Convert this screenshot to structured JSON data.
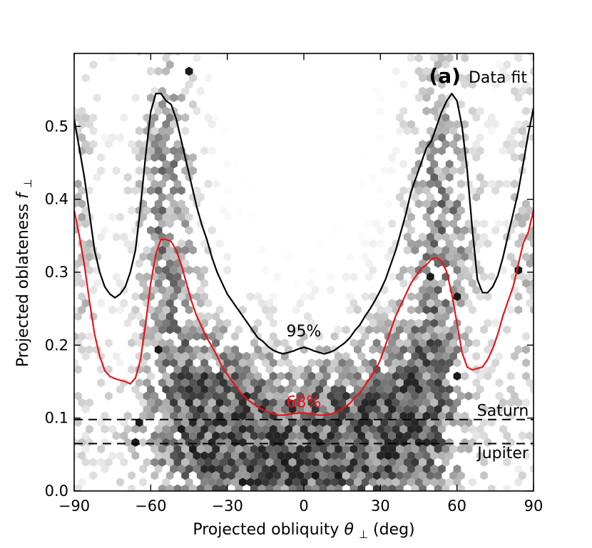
{
  "chart_data": {
    "type": "scatter",
    "panel_label": "(a)",
    "panel_title": "Data fit",
    "xlabel_prefix": "Projected obliquity ",
    "xlabel_symbol": "θ",
    "xlabel_subscript": "⊥",
    "xlabel_suffix": " (deg)",
    "ylabel_prefix": "Projected oblateness ",
    "ylabel_symbol": "f",
    "ylabel_subscript": "⊥",
    "xlim": [
      -90,
      90
    ],
    "ylim": [
      0.0,
      0.6
    ],
    "xticks": [
      -90,
      -60,
      -30,
      0,
      30,
      60,
      90
    ],
    "xtick_labels": [
      "−90",
      "−60",
      "−30",
      "0",
      "30",
      "60",
      "90"
    ],
    "yticks": [
      0.0,
      0.1,
      0.2,
      0.3,
      0.4,
      0.5
    ],
    "ytick_labels": [
      "0.0",
      "0.1",
      "0.2",
      "0.3",
      "0.4",
      "0.5"
    ],
    "grid": false,
    "background": "hexbin density of posterior samples (grayscale)",
    "series": [
      {
        "name": "95%",
        "color": "#000000",
        "points": [
          [
            -90,
            0.51
          ],
          [
            -88,
            0.47
          ],
          [
            -86,
            0.43
          ],
          [
            -84,
            0.38
          ],
          [
            -82,
            0.33
          ],
          [
            -80,
            0.3
          ],
          [
            -78,
            0.28
          ],
          [
            -76,
            0.27
          ],
          [
            -74,
            0.265
          ],
          [
            -72,
            0.27
          ],
          [
            -70,
            0.28
          ],
          [
            -68,
            0.3
          ],
          [
            -66,
            0.33
          ],
          [
            -64,
            0.39
          ],
          [
            -62,
            0.46
          ],
          [
            -60,
            0.52
          ],
          [
            -58,
            0.545
          ],
          [
            -56,
            0.545
          ],
          [
            -54,
            0.535
          ],
          [
            -52,
            0.53
          ],
          [
            -50,
            0.51
          ],
          [
            -48,
            0.48
          ],
          [
            -46,
            0.45
          ],
          [
            -44,
            0.42
          ],
          [
            -42,
            0.39
          ],
          [
            -40,
            0.365
          ],
          [
            -38,
            0.345
          ],
          [
            -36,
            0.32
          ],
          [
            -34,
            0.3
          ],
          [
            -32,
            0.285
          ],
          [
            -30,
            0.27
          ],
          [
            -28,
            0.26
          ],
          [
            -26,
            0.25
          ],
          [
            -24,
            0.24
          ],
          [
            -22,
            0.23
          ],
          [
            -20,
            0.22
          ],
          [
            -18,
            0.21
          ],
          [
            -16,
            0.205
          ],
          [
            -14,
            0.198
          ],
          [
            -12,
            0.193
          ],
          [
            -10,
            0.19
          ],
          [
            -8,
            0.188
          ],
          [
            -6,
            0.19
          ],
          [
            -4,
            0.192
          ],
          [
            -2,
            0.195
          ],
          [
            0,
            0.197
          ],
          [
            2,
            0.195
          ],
          [
            4,
            0.192
          ],
          [
            6,
            0.19
          ],
          [
            8,
            0.188
          ],
          [
            10,
            0.19
          ],
          [
            12,
            0.193
          ],
          [
            14,
            0.198
          ],
          [
            16,
            0.203
          ],
          [
            18,
            0.21
          ],
          [
            20,
            0.22
          ],
          [
            22,
            0.228
          ],
          [
            24,
            0.24
          ],
          [
            26,
            0.25
          ],
          [
            28,
            0.262
          ],
          [
            30,
            0.275
          ],
          [
            32,
            0.29
          ],
          [
            34,
            0.31
          ],
          [
            36,
            0.33
          ],
          [
            38,
            0.355
          ],
          [
            40,
            0.38
          ],
          [
            42,
            0.41
          ],
          [
            44,
            0.43
          ],
          [
            46,
            0.45
          ],
          [
            48,
            0.47
          ],
          [
            50,
            0.48
          ],
          [
            52,
            0.5
          ],
          [
            54,
            0.52
          ],
          [
            56,
            0.535
          ],
          [
            58,
            0.545
          ],
          [
            60,
            0.535
          ],
          [
            62,
            0.5
          ],
          [
            64,
            0.44
          ],
          [
            66,
            0.36
          ],
          [
            68,
            0.29
          ],
          [
            70,
            0.272
          ],
          [
            72,
            0.272
          ],
          [
            74,
            0.28
          ],
          [
            76,
            0.295
          ],
          [
            78,
            0.32
          ],
          [
            80,
            0.35
          ],
          [
            82,
            0.38
          ],
          [
            84,
            0.41
          ],
          [
            86,
            0.45
          ],
          [
            88,
            0.49
          ],
          [
            90,
            0.525
          ]
        ]
      },
      {
        "name": "68%",
        "color": "#e8141a",
        "points": [
          [
            -90,
            0.385
          ],
          [
            -88,
            0.35
          ],
          [
            -86,
            0.31
          ],
          [
            -84,
            0.26
          ],
          [
            -82,
            0.215
          ],
          [
            -80,
            0.185
          ],
          [
            -78,
            0.165
          ],
          [
            -76,
            0.157
          ],
          [
            -74,
            0.154
          ],
          [
            -72,
            0.152
          ],
          [
            -70,
            0.15
          ],
          [
            -68,
            0.147
          ],
          [
            -66,
            0.155
          ],
          [
            -64,
            0.18
          ],
          [
            -62,
            0.23
          ],
          [
            -60,
            0.285
          ],
          [
            -58,
            0.325
          ],
          [
            -56,
            0.345
          ],
          [
            -54,
            0.345
          ],
          [
            -52,
            0.342
          ],
          [
            -50,
            0.33
          ],
          [
            -48,
            0.31
          ],
          [
            -46,
            0.285
          ],
          [
            -44,
            0.26
          ],
          [
            -42,
            0.24
          ],
          [
            -40,
            0.225
          ],
          [
            -38,
            0.21
          ],
          [
            -36,
            0.198
          ],
          [
            -34,
            0.185
          ],
          [
            -32,
            0.17
          ],
          [
            -30,
            0.16
          ],
          [
            -28,
            0.15
          ],
          [
            -26,
            0.14
          ],
          [
            -24,
            0.132
          ],
          [
            -22,
            0.125
          ],
          [
            -20,
            0.12
          ],
          [
            -18,
            0.115
          ],
          [
            -16,
            0.111
          ],
          [
            -14,
            0.108
          ],
          [
            -12,
            0.106
          ],
          [
            -10,
            0.104
          ],
          [
            -8,
            0.104
          ],
          [
            -6,
            0.105
          ],
          [
            -4,
            0.106
          ],
          [
            -2,
            0.107
          ],
          [
            0,
            0.107
          ],
          [
            2,
            0.106
          ],
          [
            4,
            0.105
          ],
          [
            6,
            0.104
          ],
          [
            8,
            0.104
          ],
          [
            10,
            0.105
          ],
          [
            12,
            0.107
          ],
          [
            14,
            0.11
          ],
          [
            16,
            0.115
          ],
          [
            18,
            0.12
          ],
          [
            20,
            0.128
          ],
          [
            22,
            0.135
          ],
          [
            24,
            0.145
          ],
          [
            26,
            0.155
          ],
          [
            28,
            0.165
          ],
          [
            30,
            0.18
          ],
          [
            32,
            0.2
          ],
          [
            34,
            0.22
          ],
          [
            36,
            0.24
          ],
          [
            38,
            0.255
          ],
          [
            40,
            0.27
          ],
          [
            42,
            0.285
          ],
          [
            44,
            0.295
          ],
          [
            46,
            0.305
          ],
          [
            48,
            0.31
          ],
          [
            50,
            0.318
          ],
          [
            52,
            0.32
          ],
          [
            54,
            0.315
          ],
          [
            56,
            0.3
          ],
          [
            58,
            0.27
          ],
          [
            60,
            0.23
          ],
          [
            62,
            0.19
          ],
          [
            64,
            0.17
          ],
          [
            66,
            0.166
          ],
          [
            68,
            0.168
          ],
          [
            70,
            0.17
          ],
          [
            72,
            0.18
          ],
          [
            74,
            0.195
          ],
          [
            76,
            0.215
          ],
          [
            78,
            0.24
          ],
          [
            80,
            0.26
          ],
          [
            82,
            0.28
          ],
          [
            84,
            0.31
          ],
          [
            86,
            0.34
          ],
          [
            88,
            0.355
          ],
          [
            90,
            0.385
          ]
        ]
      }
    ],
    "reference_lines": [
      {
        "name": "Saturn",
        "y": 0.098,
        "style": "dashed",
        "color": "#000000"
      },
      {
        "name": "Jupiter",
        "y": 0.065,
        "style": "dashed",
        "color": "#000000"
      }
    ],
    "annotations": [
      {
        "text": "95%",
        "x": 0,
        "y": 0.212,
        "color": "#000000"
      },
      {
        "text": "68%",
        "x": 0,
        "y": 0.115,
        "color": "#e8141a"
      },
      {
        "text": "Saturn",
        "x": 78,
        "y": 0.103,
        "color": "#000000"
      },
      {
        "text": "Jupiter",
        "x": 78,
        "y": 0.045,
        "color": "#000000"
      }
    ]
  }
}
